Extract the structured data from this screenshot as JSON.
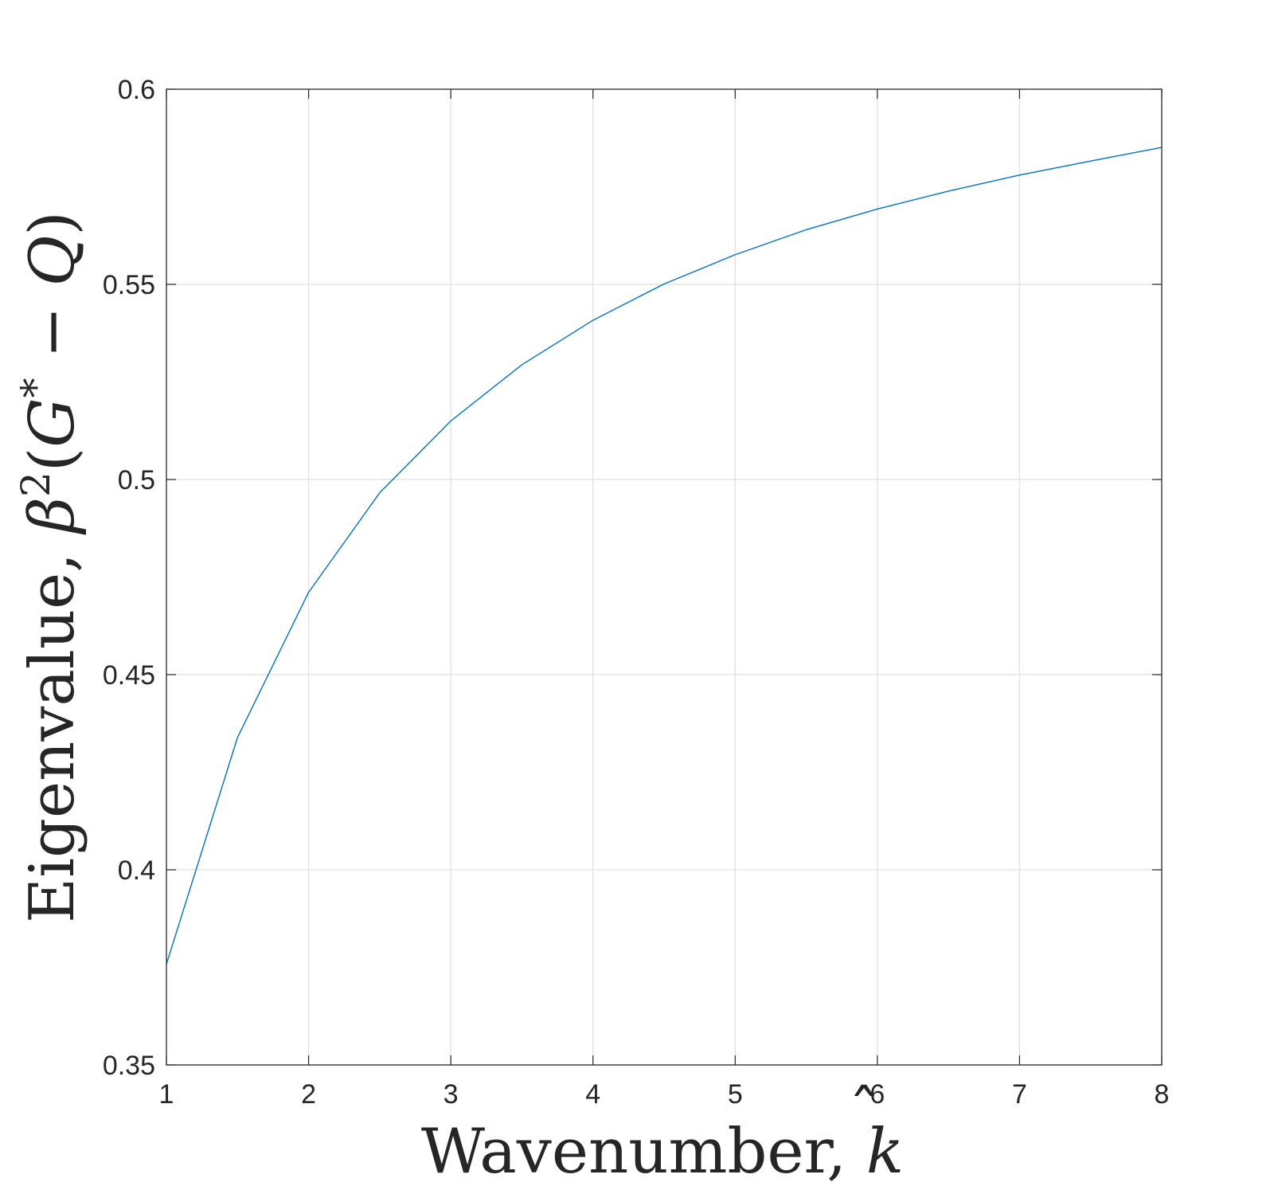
{
  "chart_data": {
    "type": "line",
    "title": "",
    "xlabel": {
      "text": "Wavenumber, ",
      "symbol": "k",
      "accent": "ˆ"
    },
    "ylabel": {
      "text": "Eigenvalue, ",
      "beta": "β",
      "sup": "2",
      "open": "(",
      "g": "G",
      "star": "*",
      "minus": " − ",
      "q": "Q",
      "close": ")"
    },
    "xlim": [
      1,
      8
    ],
    "ylim": [
      0.35,
      0.6
    ],
    "xticks": [
      1,
      2,
      3,
      4,
      5,
      6,
      7,
      8
    ],
    "xtick_labels": [
      "1",
      "2",
      "3",
      "4",
      "5",
      "6",
      "7",
      "8"
    ],
    "yticks": [
      0.35,
      0.4,
      0.45,
      0.5,
      0.55,
      0.6
    ],
    "ytick_labels": [
      "0.35",
      "0.4",
      "0.45",
      "0.5",
      "0.55",
      "0.6"
    ],
    "grid": true,
    "legend": "none",
    "series": [
      {
        "color": "#0072BD",
        "x": [
          1,
          1.5,
          2,
          2.5,
          3,
          3.5,
          4,
          4.5,
          5,
          5.5,
          6,
          6.5,
          7,
          7.5,
          8
        ],
        "y": [
          0.3758,
          0.4339,
          0.4711,
          0.4966,
          0.515,
          0.5294,
          0.5408,
          0.5501,
          0.5576,
          0.564,
          0.5693,
          0.5739,
          0.578,
          0.5816,
          0.5851
        ]
      }
    ],
    "colors": {
      "axis": "#262626",
      "grid": "#dfdfdf",
      "line": "#0072BD"
    }
  }
}
